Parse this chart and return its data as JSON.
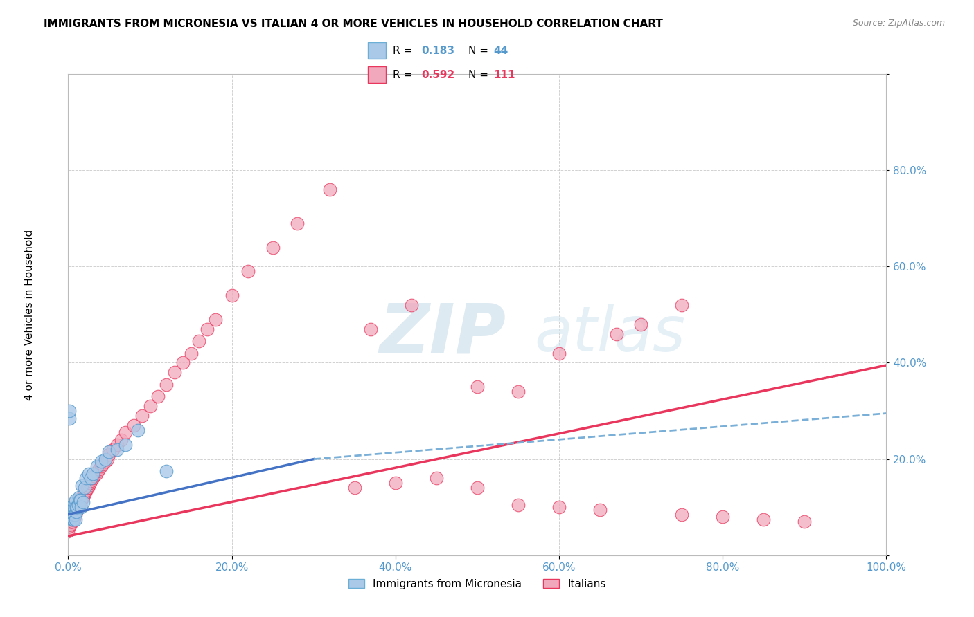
{
  "title": "IMMIGRANTS FROM MICRONESIA VS ITALIAN 4 OR MORE VEHICLES IN HOUSEHOLD CORRELATION CHART",
  "source": "Source: ZipAtlas.com",
  "ylabel": "4 or more Vehicles in Household",
  "xlim": [
    0,
    1.0
  ],
  "ylim": [
    0,
    1.0
  ],
  "color_micronesia": "#aac9e8",
  "color_italian": "#f2a8bc",
  "color_line_micronesia": "#4472c4",
  "color_line_italian": "#e8365d",
  "color_dashed": "#7ab0d8",
  "micronesia_x": [
    0.0,
    0.001,
    0.001,
    0.002,
    0.002,
    0.003,
    0.003,
    0.003,
    0.004,
    0.004,
    0.005,
    0.005,
    0.005,
    0.006,
    0.006,
    0.007,
    0.007,
    0.008,
    0.008,
    0.009,
    0.009,
    0.01,
    0.01,
    0.011,
    0.012,
    0.013,
    0.014,
    0.015,
    0.016,
    0.017,
    0.018,
    0.02,
    0.022,
    0.025,
    0.028,
    0.03,
    0.035,
    0.04,
    0.045,
    0.05,
    0.06,
    0.07,
    0.085,
    0.12
  ],
  "micronesia_y": [
    0.08,
    0.285,
    0.3,
    0.08,
    0.095,
    0.08,
    0.085,
    0.09,
    0.09,
    0.1,
    0.075,
    0.08,
    0.095,
    0.075,
    0.085,
    0.09,
    0.1,
    0.085,
    0.11,
    0.075,
    0.115,
    0.09,
    0.1,
    0.1,
    0.105,
    0.12,
    0.115,
    0.115,
    0.1,
    0.145,
    0.11,
    0.14,
    0.16,
    0.17,
    0.16,
    0.17,
    0.185,
    0.195,
    0.2,
    0.215,
    0.22,
    0.23,
    0.26,
    0.175
  ],
  "italian_x": [
    0.0,
    0.0,
    0.0,
    0.001,
    0.001,
    0.001,
    0.001,
    0.001,
    0.002,
    0.002,
    0.002,
    0.002,
    0.002,
    0.003,
    0.003,
    0.003,
    0.003,
    0.004,
    0.004,
    0.004,
    0.004,
    0.005,
    0.005,
    0.005,
    0.005,
    0.006,
    0.006,
    0.006,
    0.007,
    0.007,
    0.007,
    0.008,
    0.008,
    0.008,
    0.009,
    0.009,
    0.01,
    0.01,
    0.01,
    0.011,
    0.011,
    0.012,
    0.012,
    0.013,
    0.013,
    0.014,
    0.015,
    0.015,
    0.016,
    0.017,
    0.018,
    0.019,
    0.02,
    0.02,
    0.021,
    0.022,
    0.023,
    0.024,
    0.025,
    0.026,
    0.027,
    0.028,
    0.03,
    0.032,
    0.034,
    0.036,
    0.038,
    0.04,
    0.042,
    0.045,
    0.048,
    0.05,
    0.055,
    0.06,
    0.065,
    0.07,
    0.08,
    0.09,
    0.1,
    0.11,
    0.12,
    0.13,
    0.14,
    0.15,
    0.16,
    0.17,
    0.18,
    0.2,
    0.22,
    0.25,
    0.28,
    0.32,
    0.37,
    0.42,
    0.5,
    0.55,
    0.6,
    0.67,
    0.7,
    0.75,
    0.35,
    0.4,
    0.45,
    0.5,
    0.55,
    0.6,
    0.65,
    0.75,
    0.8,
    0.85,
    0.9
  ],
  "italian_y": [
    0.05,
    0.06,
    0.07,
    0.06,
    0.065,
    0.07,
    0.075,
    0.08,
    0.065,
    0.07,
    0.075,
    0.08,
    0.085,
    0.065,
    0.07,
    0.075,
    0.08,
    0.07,
    0.075,
    0.08,
    0.085,
    0.07,
    0.075,
    0.08,
    0.085,
    0.075,
    0.08,
    0.085,
    0.08,
    0.085,
    0.09,
    0.08,
    0.085,
    0.09,
    0.085,
    0.09,
    0.09,
    0.095,
    0.1,
    0.095,
    0.1,
    0.1,
    0.105,
    0.105,
    0.11,
    0.11,
    0.11,
    0.115,
    0.115,
    0.12,
    0.12,
    0.125,
    0.13,
    0.135,
    0.13,
    0.135,
    0.14,
    0.14,
    0.145,
    0.15,
    0.15,
    0.155,
    0.16,
    0.165,
    0.17,
    0.175,
    0.18,
    0.185,
    0.19,
    0.195,
    0.2,
    0.21,
    0.22,
    0.23,
    0.24,
    0.255,
    0.27,
    0.29,
    0.31,
    0.33,
    0.355,
    0.38,
    0.4,
    0.42,
    0.445,
    0.47,
    0.49,
    0.54,
    0.59,
    0.64,
    0.69,
    0.76,
    0.47,
    0.52,
    0.35,
    0.34,
    0.42,
    0.46,
    0.48,
    0.52,
    0.14,
    0.15,
    0.16,
    0.14,
    0.105,
    0.1,
    0.095,
    0.085,
    0.08,
    0.075,
    0.07
  ],
  "line_mic_x0": 0.0,
  "line_mic_y0": 0.085,
  "line_mic_x1": 0.3,
  "line_mic_y1": 0.2,
  "line_mic_x1_dashed": 1.0,
  "line_mic_y1_dashed": 0.295,
  "line_ital_x0": 0.0,
  "line_ital_y0": 0.04,
  "line_ital_x1": 1.0,
  "line_ital_y1": 0.395
}
